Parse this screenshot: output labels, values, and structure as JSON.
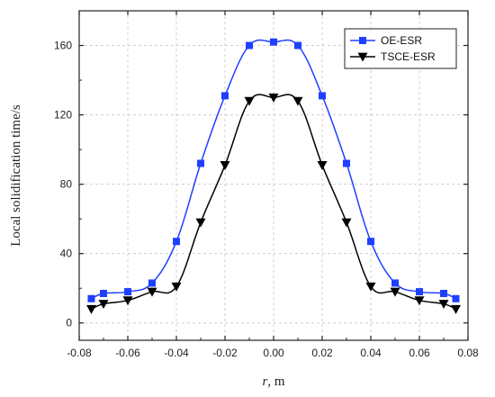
{
  "chart_data": {
    "type": "line",
    "xlabel_italic": "r",
    "xlabel_rest": ", m",
    "ylabel": "Local solidification time/s",
    "xlim": [
      -0.08,
      0.08
    ],
    "ylim": [
      -10,
      180
    ],
    "xticks": [
      -0.08,
      -0.06,
      -0.04,
      -0.02,
      0.0,
      0.02,
      0.04,
      0.06,
      0.08
    ],
    "xtick_labels": [
      "-0.08",
      "-0.06",
      "-0.04",
      "-0.02",
      "0.00",
      "0.02",
      "0.04",
      "0.06",
      "0.08"
    ],
    "yticks": [
      0,
      40,
      80,
      120,
      160
    ],
    "ytick_labels": [
      "0",
      "40",
      "80",
      "120",
      "160"
    ],
    "grid": true,
    "legend_position": "top-right",
    "series": [
      {
        "name": "OE-ESR",
        "color": "#1f3fff",
        "marker": "square",
        "x": [
          -0.075,
          -0.07,
          -0.06,
          -0.05,
          -0.04,
          -0.03,
          -0.02,
          -0.01,
          0.0,
          0.01,
          0.02,
          0.03,
          0.04,
          0.05,
          0.06,
          0.07,
          0.075
        ],
        "y": [
          14,
          17,
          18,
          23,
          47,
          92,
          131,
          160,
          162,
          160,
          131,
          92,
          47,
          23,
          18,
          17,
          14
        ]
      },
      {
        "name": "TSCE-ESR",
        "color": "#000000",
        "marker": "triangle-down",
        "x": [
          -0.075,
          -0.07,
          -0.06,
          -0.05,
          -0.04,
          -0.03,
          -0.02,
          -0.01,
          0.0,
          0.01,
          0.02,
          0.03,
          0.04,
          0.05,
          0.06,
          0.07,
          0.075
        ],
        "y": [
          8,
          11,
          13,
          18,
          21,
          58,
          91,
          128,
          130,
          128,
          91,
          58,
          21,
          18,
          13,
          11,
          8
        ]
      }
    ]
  }
}
